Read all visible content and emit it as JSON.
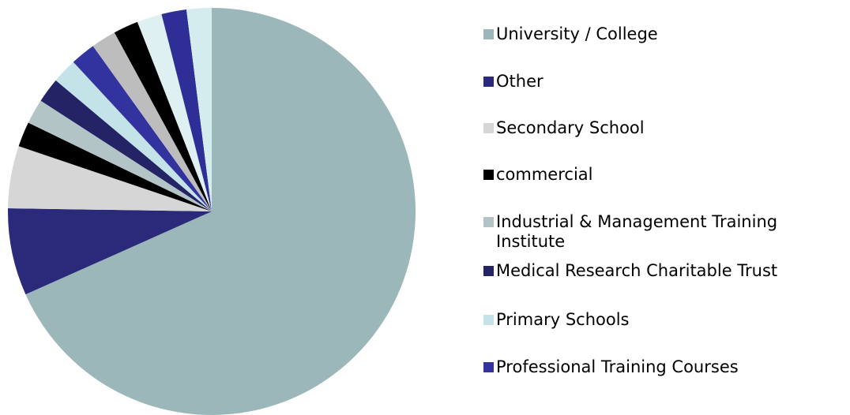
{
  "chart_data": {
    "type": "pie",
    "categories": [
      "University / College",
      "Other",
      "Secondary School",
      "commercial",
      "Industrial & Management Training Institute",
      "Medical Research Charitable Trust",
      "Primary Schools",
      "Professional Training Courses",
      null,
      null,
      null,
      null,
      null
    ],
    "values": [
      69,
      7,
      5,
      2,
      2,
      2,
      2,
      2,
      2,
      2,
      2,
      2,
      2
    ],
    "colors": [
      "#9bb7b9",
      "#2b2a7a",
      "#d6d6d6",
      "#000000",
      "#b3c4c6",
      "#232366",
      "#c3e3e8",
      "#3333a0",
      "#bdbdbd",
      "#000000",
      "#dff0f2",
      "#2e2e96",
      "#d5ecef"
    ],
    "legend": "right"
  }
}
